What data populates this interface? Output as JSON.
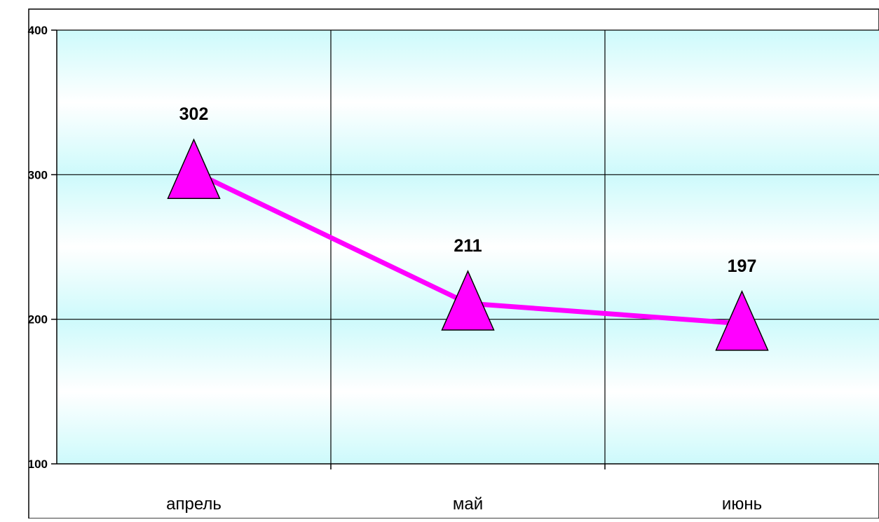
{
  "chart_data": {
    "type": "line",
    "categories": [
      "апрель",
      "май",
      "июнь"
    ],
    "series": [
      {
        "values": [
          302,
          211,
          197
        ],
        "color": "#ff00ff",
        "marker": "triangle",
        "data_labels": [
          "302",
          "211",
          "197"
        ]
      }
    ],
    "ylim": [
      100,
      400
    ],
    "yticks": [
      100,
      200,
      300,
      400
    ],
    "ytick_labels": [
      "100",
      "200",
      "300",
      "400"
    ],
    "grid": true,
    "legend": "none",
    "plot_background": [
      "#cdfafb",
      "#ffffff"
    ]
  }
}
